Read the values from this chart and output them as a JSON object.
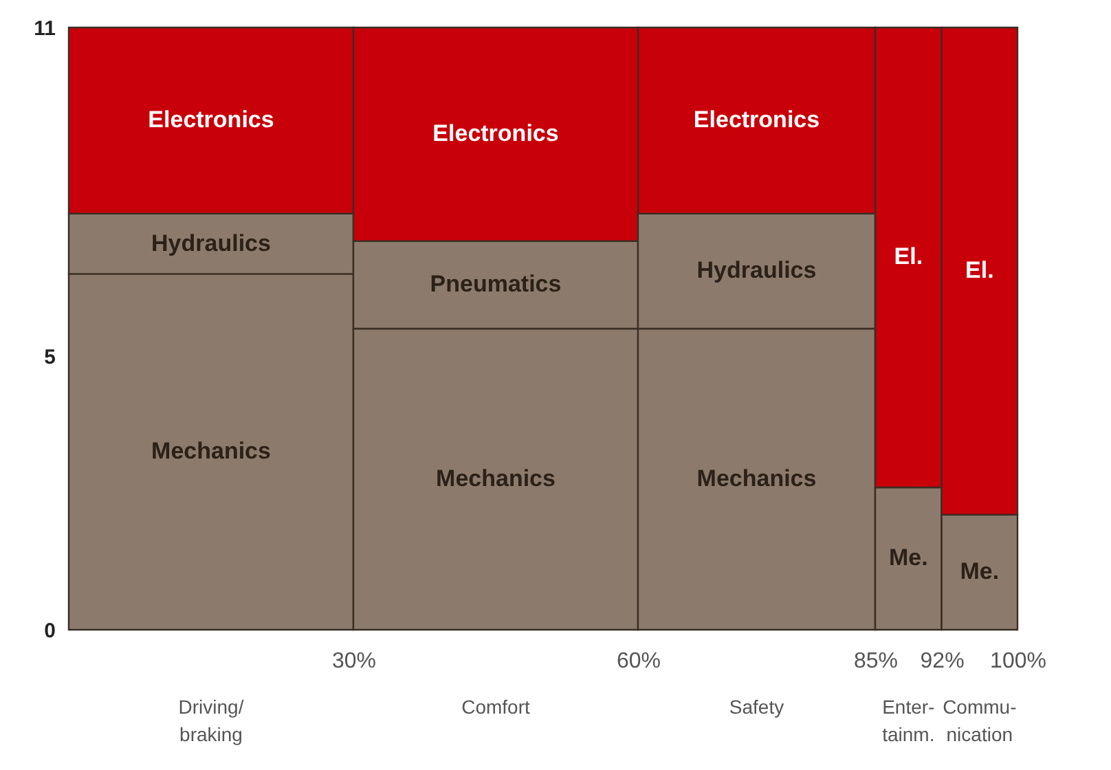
{
  "chart_data": {
    "type": "bar",
    "stacked": true,
    "grid": false,
    "annotations": [
      "Driving/ braking",
      "Comfort",
      "Safety",
      "Enter- tainm.",
      "Commu- nication"
    ],
    "x": [
      15,
      45,
      72.5,
      88.5,
      96
    ],
    "xlim": [
      0,
      100
    ],
    "xticks": [
      {
        "value": 30,
        "label": "30%"
      },
      {
        "value": 60,
        "label": "60%"
      },
      {
        "value": 85,
        "label": "85%"
      },
      {
        "value": 92,
        "label": "92%"
      },
      {
        "value": 100,
        "label": "100%"
      }
    ],
    "ylim": [
      0,
      11
    ],
    "yticks": [
      0,
      5,
      11
    ],
    "series": [
      {
        "name": "Mechanics",
        "color": "#8c7b6c",
        "values": [
          6.5,
          5.5,
          5.5,
          2.6,
          2.1
        ],
        "value_labels": [
          null,
          null,
          null,
          "Me.",
          "Me."
        ]
      },
      {
        "name": "Hydraulics",
        "color": "#8c7b6c",
        "values": [
          1.1,
          null,
          2.1,
          null,
          null
        ]
      },
      {
        "name": "Pneumatics",
        "color": "#8c7b6c",
        "values": [
          null,
          1.6,
          null,
          null,
          null
        ]
      },
      {
        "name": "Electronics",
        "color": "#c8000a",
        "values": [
          3.4,
          3.9,
          3.4,
          8.4,
          8.9
        ],
        "value_labels": [
          null,
          null,
          null,
          "El.",
          "El."
        ]
      }
    ]
  }
}
